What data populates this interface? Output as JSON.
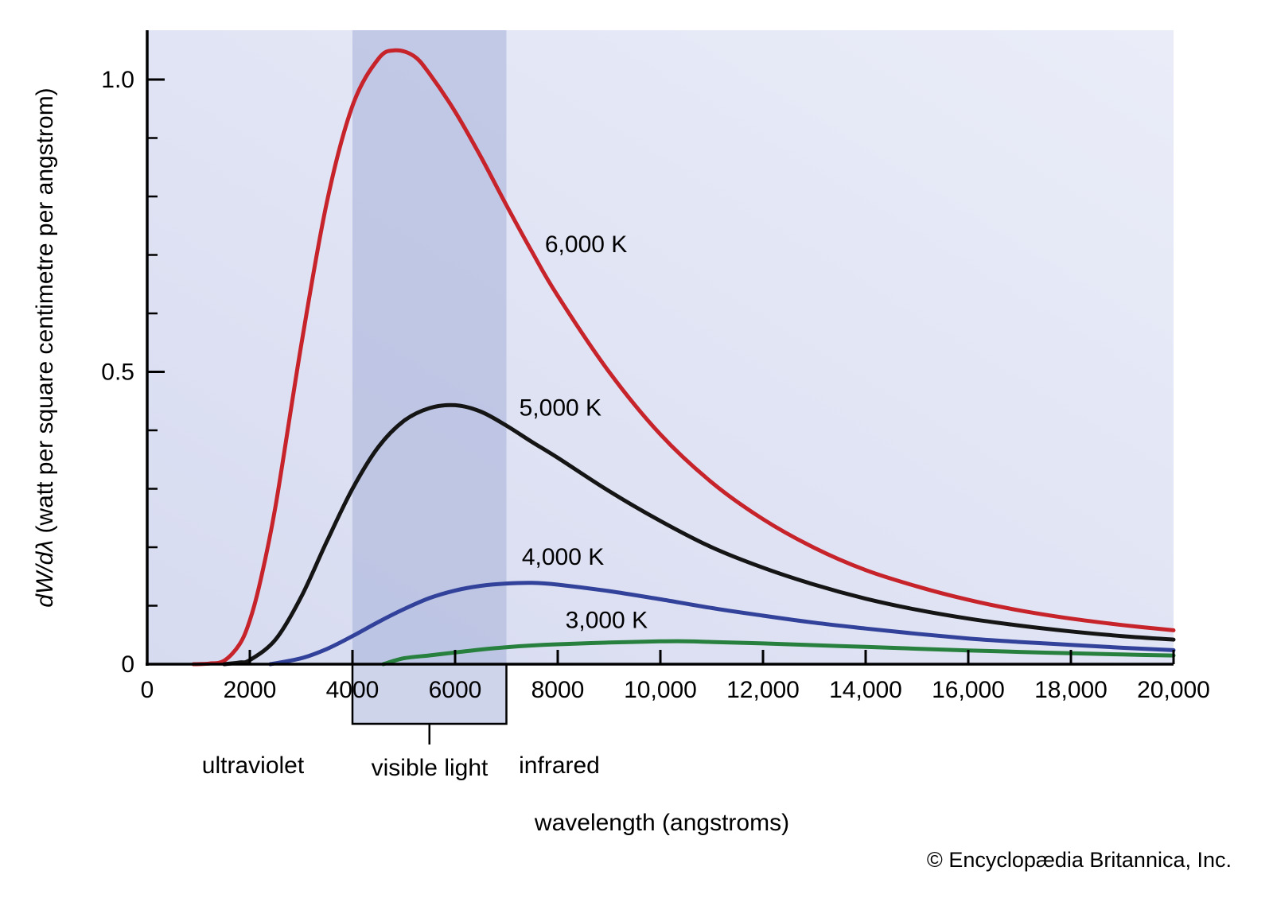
{
  "figure": {
    "copyright": "© Encyclopædia Britannica, Inc.",
    "plot_gradient": [
      "#d7dbf0",
      "#eaedf8"
    ],
    "band_fill": "rgba(166,176,216,0.55)",
    "axis_color": "#000000"
  },
  "chart_data": {
    "type": "line",
    "xlabel": "wavelength (angstroms)",
    "ylabel_math": "dW/dλ",
    "ylabel_units": " (watt per square centimetre per angstrom)",
    "xlim": [
      0,
      20000
    ],
    "ylim": [
      0,
      1.08
    ],
    "grid": false,
    "legend_position": "inline-curve-labels",
    "x_ticks": [
      0,
      2000,
      4000,
      6000,
      8000,
      10000,
      12000,
      14000,
      16000,
      18000,
      20000
    ],
    "x_tick_labels": [
      "0",
      "2000",
      "4000",
      "6000",
      "8000",
      "10,000",
      "12,000",
      "14,000",
      "16,000",
      "18,000",
      "20,000"
    ],
    "y_ticks": [
      0,
      0.5,
      1.0
    ],
    "y_tick_labels": [
      "0",
      "0.5",
      "1.0"
    ],
    "y_minor_ticks": [
      0.1,
      0.2,
      0.3,
      0.4,
      0.6,
      0.7,
      0.8,
      0.9
    ],
    "visible_band": {
      "from_angstroms": 4000,
      "to_angstroms": 7000
    },
    "spectral_regions": [
      {
        "label": "ultraviolet"
      },
      {
        "label": "visible light"
      },
      {
        "label": "infrared"
      }
    ],
    "series": [
      {
        "name": "6,000 K",
        "color": "#c7232b",
        "label_x": 7750,
        "label_y": 0.705,
        "points": [
          [
            900,
            0
          ],
          [
            1200,
            0.001
          ],
          [
            1500,
            0.006
          ],
          [
            1800,
            0.034
          ],
          [
            2000,
            0.075
          ],
          [
            2200,
            0.14
          ],
          [
            2500,
            0.27
          ],
          [
            3000,
            0.545
          ],
          [
            3500,
            0.79
          ],
          [
            4000,
            0.955
          ],
          [
            4500,
            1.035
          ],
          [
            4830,
            1.05
          ],
          [
            5200,
            1.04
          ],
          [
            5500,
            1.01
          ],
          [
            6000,
            0.945
          ],
          [
            6500,
            0.868
          ],
          [
            7000,
            0.785
          ],
          [
            7500,
            0.705
          ],
          [
            8000,
            0.63
          ],
          [
            9000,
            0.5
          ],
          [
            10000,
            0.393
          ],
          [
            11000,
            0.311
          ],
          [
            12000,
            0.248
          ],
          [
            13000,
            0.199
          ],
          [
            14000,
            0.161
          ],
          [
            15000,
            0.133
          ],
          [
            16000,
            0.11
          ],
          [
            17000,
            0.092
          ],
          [
            18000,
            0.078
          ],
          [
            19000,
            0.067
          ],
          [
            20000,
            0.058
          ]
        ]
      },
      {
        "name": "5,000 K",
        "color": "#151515",
        "label_x": 7250,
        "label_y": 0.425,
        "points": [
          [
            1500,
            0
          ],
          [
            1800,
            0.003
          ],
          [
            2000,
            0.007
          ],
          [
            2500,
            0.042
          ],
          [
            3000,
            0.115
          ],
          [
            3500,
            0.21
          ],
          [
            4000,
            0.3
          ],
          [
            4500,
            0.371
          ],
          [
            5000,
            0.416
          ],
          [
            5500,
            0.438
          ],
          [
            6000,
            0.443
          ],
          [
            6500,
            0.432
          ],
          [
            7000,
            0.408
          ],
          [
            7500,
            0.38
          ],
          [
            8000,
            0.353
          ],
          [
            9000,
            0.296
          ],
          [
            10000,
            0.245
          ],
          [
            11000,
            0.2
          ],
          [
            12000,
            0.165
          ],
          [
            13000,
            0.136
          ],
          [
            14000,
            0.112
          ],
          [
            15000,
            0.093
          ],
          [
            16000,
            0.078
          ],
          [
            17000,
            0.066
          ],
          [
            18000,
            0.056
          ],
          [
            19000,
            0.048
          ],
          [
            20000,
            0.042
          ]
        ]
      },
      {
        "name": "4,000 K",
        "color": "#32429b",
        "label_x": 7300,
        "label_y": 0.17,
        "points": [
          [
            2400,
            0
          ],
          [
            3000,
            0.01
          ],
          [
            3500,
            0.026
          ],
          [
            4000,
            0.048
          ],
          [
            4500,
            0.072
          ],
          [
            5000,
            0.094
          ],
          [
            5500,
            0.113
          ],
          [
            6000,
            0.126
          ],
          [
            6500,
            0.134
          ],
          [
            7000,
            0.138
          ],
          [
            7500,
            0.139
          ],
          [
            8000,
            0.136
          ],
          [
            9000,
            0.125
          ],
          [
            10000,
            0.111
          ],
          [
            11000,
            0.096
          ],
          [
            12000,
            0.083
          ],
          [
            13000,
            0.071
          ],
          [
            14000,
            0.061
          ],
          [
            15000,
            0.052
          ],
          [
            16000,
            0.044
          ],
          [
            17000,
            0.038
          ],
          [
            18000,
            0.033
          ],
          [
            19000,
            0.028
          ],
          [
            20000,
            0.024
          ]
        ]
      },
      {
        "name": "3,000 K",
        "color": "#27803d",
        "label_x": 8150,
        "label_y": 0.062,
        "points": [
          [
            4600,
            0
          ],
          [
            5000,
            0.01
          ],
          [
            5500,
            0.015
          ],
          [
            6000,
            0.02
          ],
          [
            6500,
            0.025
          ],
          [
            7000,
            0.029
          ],
          [
            7500,
            0.032
          ],
          [
            8000,
            0.034
          ],
          [
            9000,
            0.037
          ],
          [
            10000,
            0.039
          ],
          [
            10500,
            0.0392
          ],
          [
            11000,
            0.038
          ],
          [
            12000,
            0.0355
          ],
          [
            13000,
            0.0325
          ],
          [
            14000,
            0.0295
          ],
          [
            15000,
            0.0264
          ],
          [
            16000,
            0.0236
          ],
          [
            17000,
            0.021
          ],
          [
            18000,
            0.0187
          ],
          [
            19000,
            0.0166
          ],
          [
            20000,
            0.0148
          ]
        ]
      }
    ]
  }
}
